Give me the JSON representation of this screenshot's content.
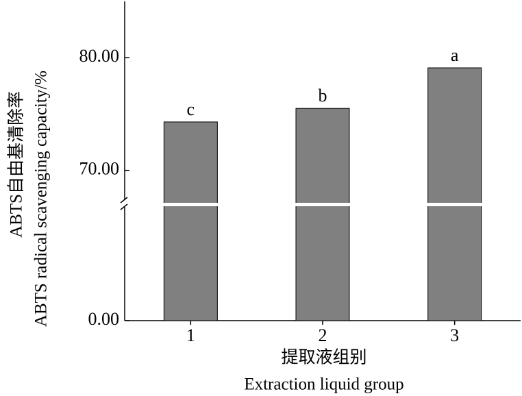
{
  "chart_data": {
    "type": "bar",
    "categories": [
      "1",
      "2",
      "3"
    ],
    "values": [
      74.3,
      75.5,
      79.1
    ],
    "significance_letters": [
      "c",
      "b",
      "a"
    ],
    "color": "#808080",
    "ylim": [
      0,
      85
    ],
    "y_break": 67,
    "yticks": [
      {
        "value": 0,
        "label": "0.00"
      },
      {
        "value": 70,
        "label": "70.00"
      },
      {
        "value": 80,
        "label": "80.00"
      }
    ],
    "ylabel": [
      "ABTS自由基清除率",
      "ABTS radical scavenging capacity/%"
    ],
    "xlabel": [
      "提取液组别",
      "Extraction liquid group"
    ],
    "grid": false
  }
}
